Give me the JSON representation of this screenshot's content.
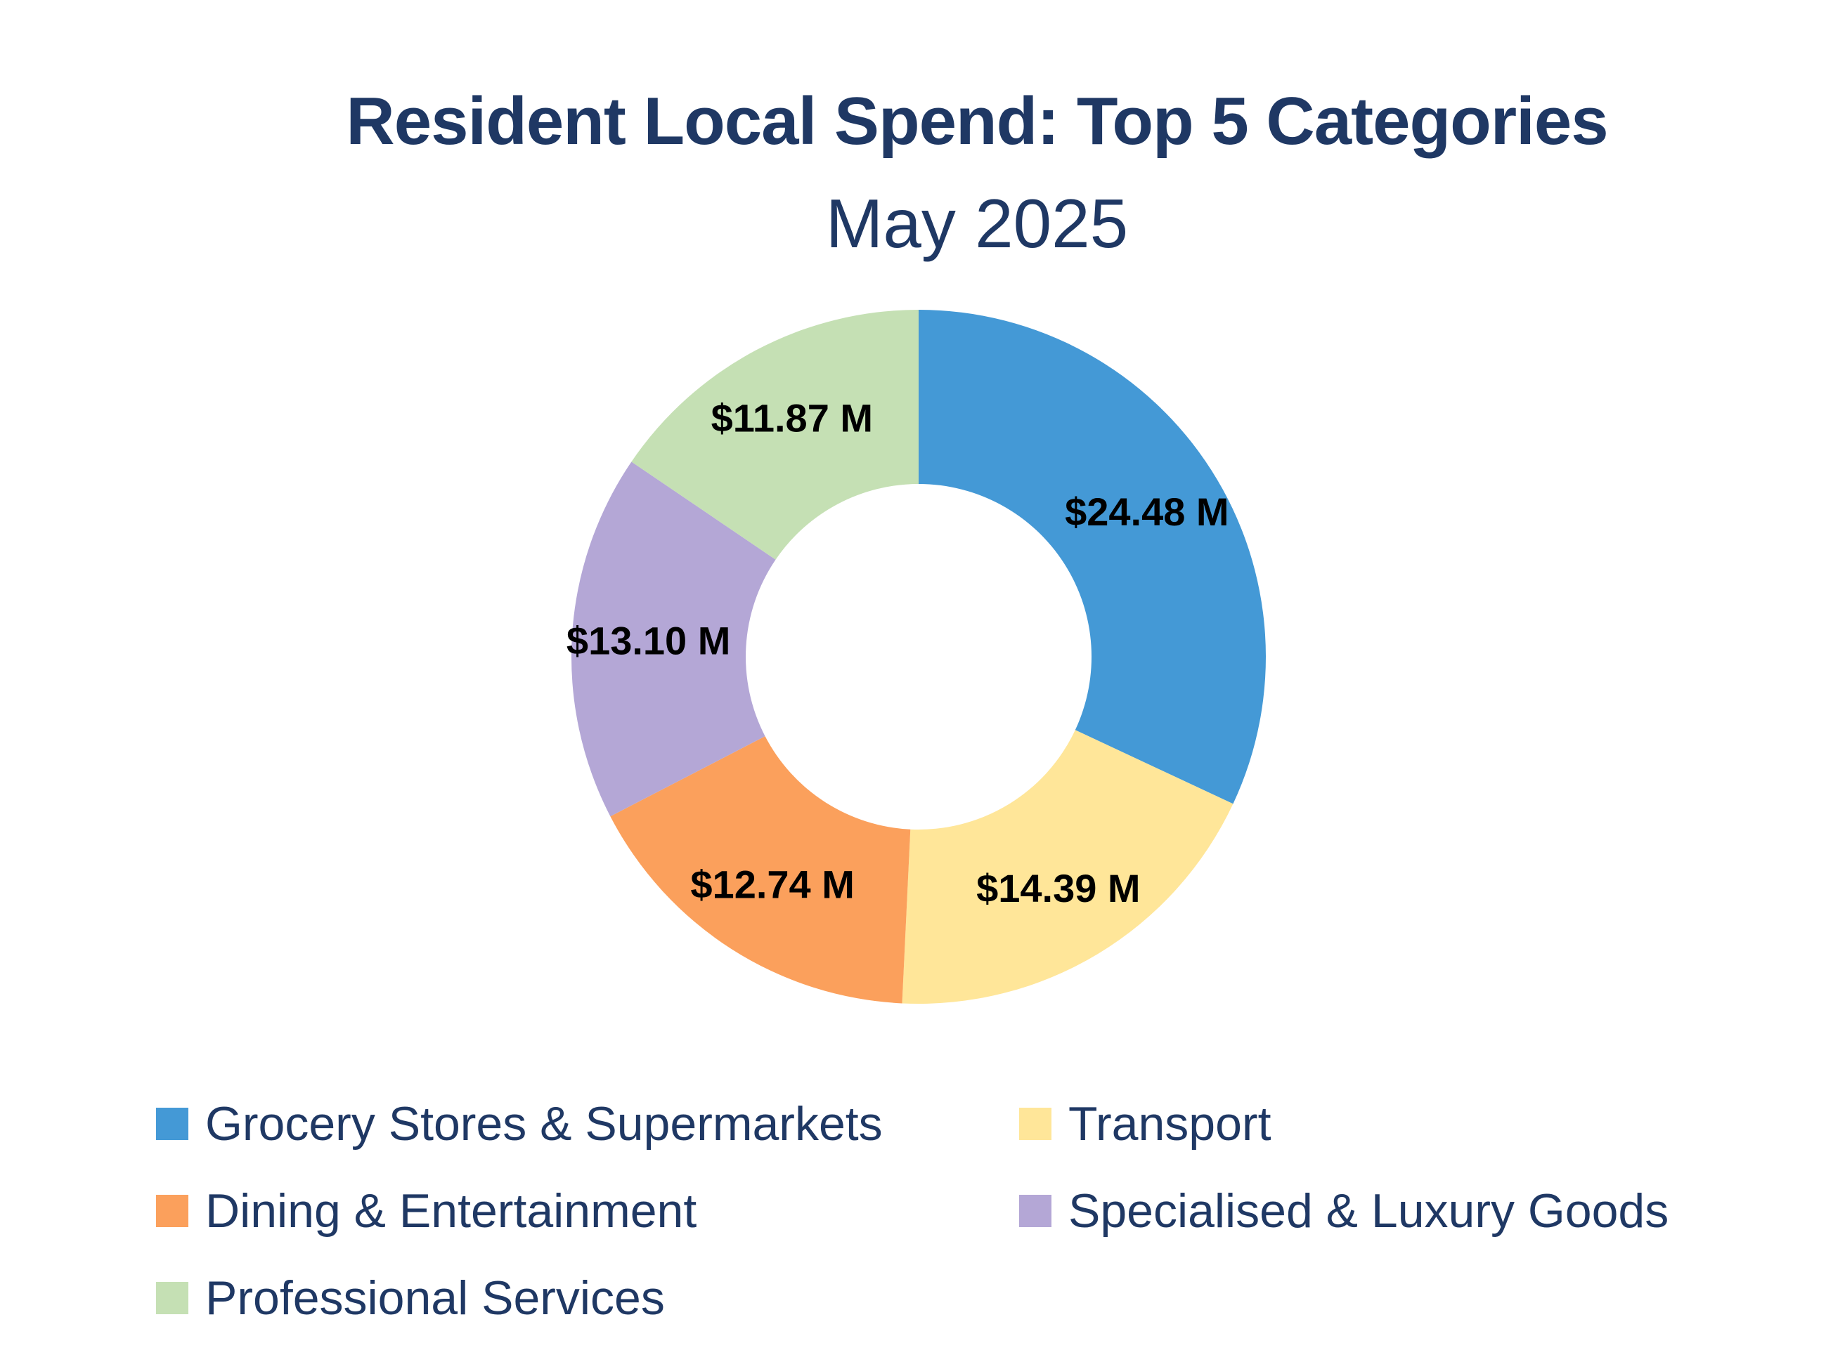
{
  "chart_data": {
    "type": "pie",
    "title": "Resident Local Spend: Top 5 Categories",
    "subtitle": "May 2025",
    "donut": true,
    "legend_position": "bottom",
    "categories": [
      "Grocery Stores & Supermarkets",
      "Transport",
      "Dining & Entertainment",
      "Specialised & Luxury Goods",
      "Professional Services"
    ],
    "values": [
      24.48,
      14.39,
      12.74,
      13.1,
      11.87
    ],
    "value_labels": [
      "$24.48 M",
      "$14.39 M",
      "$12.74 M",
      "$13.10 M",
      "$11.87 M"
    ],
    "colors": [
      "#4499d6",
      "#ffe699",
      "#fba05c",
      "#b4a7d6",
      "#c5e0b4"
    ]
  }
}
